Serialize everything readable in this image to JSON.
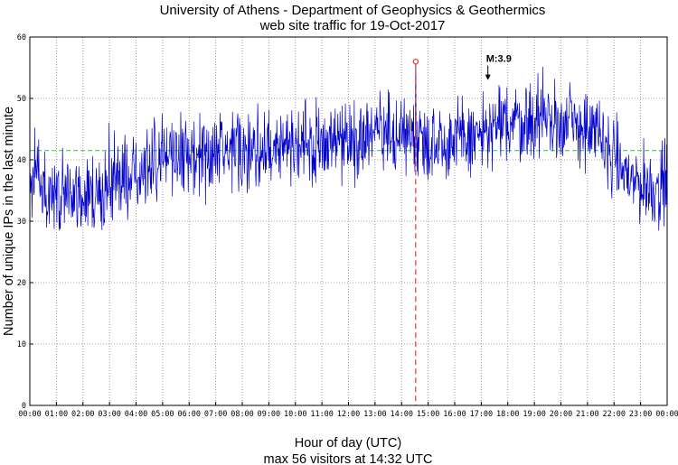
{
  "chart_data": {
    "type": "line",
    "title": "University of Athens - Department of Geophysics & Geothermics",
    "subtitle": "web site traffic for 19-Oct-2017",
    "xlabel": "Hour of day (UTC)",
    "ylabel": "Number of unique IPs in the last minute",
    "footer": "max 56 visitors at 14:32 UTC",
    "xlim": [
      0,
      24
    ],
    "ylim": [
      0,
      60
    ],
    "x_ticks": [
      "00:00",
      "01:00",
      "02:00",
      "03:00",
      "04:00",
      "05:00",
      "06:00",
      "07:00",
      "08:00",
      "09:00",
      "10:00",
      "11:00",
      "12:00",
      "13:00",
      "14:00",
      "15:00",
      "16:00",
      "17:00",
      "18:00",
      "19:00",
      "20:00",
      "21:00",
      "22:00",
      "23:00",
      "00:00"
    ],
    "y_ticks": [
      0,
      10,
      20,
      30,
      40,
      50,
      60
    ],
    "grid": true,
    "mean_line": 41.5,
    "max_point": {
      "x": 14.53,
      "y": 56
    },
    "annotation": {
      "text": "M:3.9",
      "x": 17.25,
      "y": 53
    },
    "trend": [
      {
        "x": 0.0,
        "y": 36
      },
      {
        "x": 0.5,
        "y": 35.5
      },
      {
        "x": 1.0,
        "y": 34.5
      },
      {
        "x": 1.5,
        "y": 34
      },
      {
        "x": 2.0,
        "y": 34
      },
      {
        "x": 2.5,
        "y": 34.5
      },
      {
        "x": 3.0,
        "y": 35.5
      },
      {
        "x": 3.5,
        "y": 37
      },
      {
        "x": 4.0,
        "y": 38.5
      },
      {
        "x": 4.5,
        "y": 39.5
      },
      {
        "x": 5.0,
        "y": 40
      },
      {
        "x": 6.0,
        "y": 40.5
      },
      {
        "x": 7.0,
        "y": 41
      },
      {
        "x": 8.0,
        "y": 41.5
      },
      {
        "x": 9.0,
        "y": 42
      },
      {
        "x": 10.0,
        "y": 42.5
      },
      {
        "x": 11.0,
        "y": 43
      },
      {
        "x": 12.0,
        "y": 43.5
      },
      {
        "x": 13.0,
        "y": 44
      },
      {
        "x": 14.0,
        "y": 44
      },
      {
        "x": 15.0,
        "y": 43.5
      },
      {
        "x": 16.0,
        "y": 43
      },
      {
        "x": 17.0,
        "y": 44
      },
      {
        "x": 18.0,
        "y": 46
      },
      {
        "x": 19.0,
        "y": 46.5
      },
      {
        "x": 20.0,
        "y": 46
      },
      {
        "x": 21.0,
        "y": 45
      },
      {
        "x": 21.5,
        "y": 43.5
      },
      {
        "x": 22.0,
        "y": 40
      },
      {
        "x": 22.5,
        "y": 37.5
      },
      {
        "x": 23.0,
        "y": 36
      },
      {
        "x": 23.5,
        "y": 35.5
      },
      {
        "x": 24.0,
        "y": 35.5
      }
    ],
    "noise_amplitude": 4.5,
    "colors": {
      "series": "#0000cc",
      "mean": "#33cc33",
      "peak": "#ee3333",
      "grid": "#888888"
    }
  }
}
